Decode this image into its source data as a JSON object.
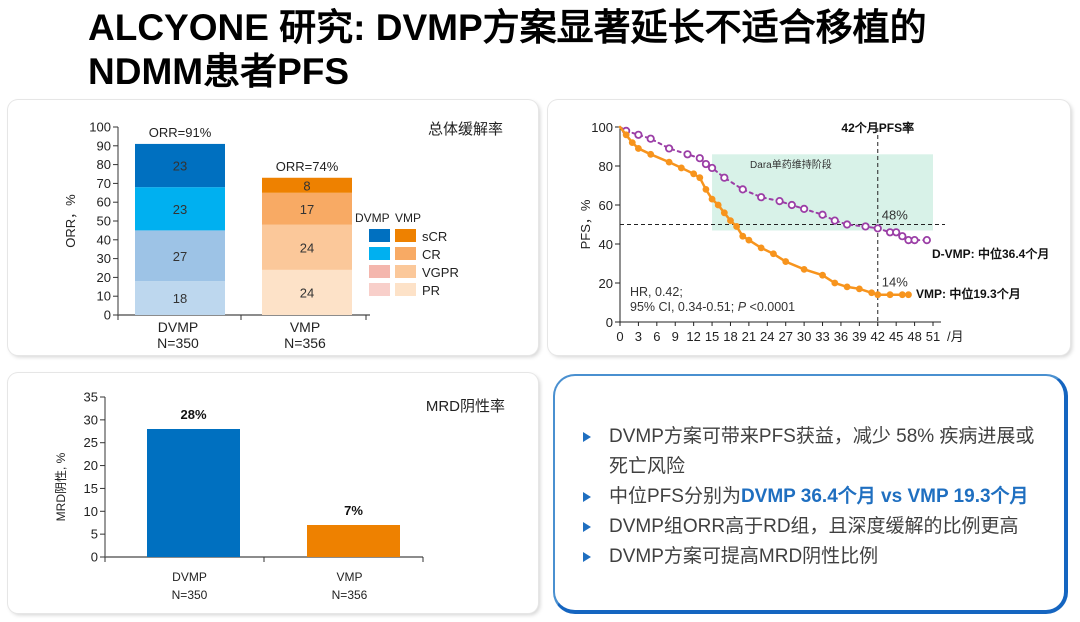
{
  "title": {
    "line1": "ALCYONE 研究: DVMP方案显著延长不适合移植的",
    "line2": "NDMM患者PFS"
  },
  "colors": {
    "dvmp_scr": "#0070c0",
    "dvmp_cr": "#00b0f0",
    "dvmp_vgpr": "#9dc3e6",
    "dvmp_pr": "#bdd7ee",
    "legend_dvmp_vgpr": "#f4b6ad",
    "legend_dvmp_pr": "#f8cfca",
    "vmp_scr": "#ee8100",
    "vmp_cr": "#f8aa64",
    "vmp_vgpr": "#fbc89a",
    "vmp_pr": "#fde2c8",
    "dvmp_line": "#9b3ea6",
    "vmp_line": "#f7941d",
    "shade": "#d8f2e8",
    "mrd_dvmp": "#0070c0",
    "mrd_vmp": "#ee8100",
    "accent": "#1f6fc0"
  },
  "chart_data": [
    {
      "id": "orr",
      "type": "bar",
      "stacked": true,
      "title": "总体缓解率",
      "ylabel": "ORR，%",
      "ylim": [
        0,
        100
      ],
      "yticks": [
        0,
        10,
        20,
        30,
        40,
        50,
        60,
        70,
        80,
        90,
        100
      ],
      "categories": [
        "DVMP",
        "VMP"
      ],
      "category_sublabels": [
        "N=350",
        "N=356"
      ],
      "totals_labels": [
        "ORR=91%",
        "ORR=74%"
      ],
      "series": [
        {
          "name": "PR",
          "values": [
            18,
            24
          ]
        },
        {
          "name": "VGPR",
          "values": [
            27,
            24
          ]
        },
        {
          "name": "CR",
          "values": [
            23,
            17
          ]
        },
        {
          "name": "sCR",
          "values": [
            23,
            8
          ]
        }
      ],
      "legend": {
        "header": [
          "DVMP",
          "VMP"
        ],
        "entries": [
          "sCR",
          "CR",
          "VGPR",
          "PR"
        ],
        "placement": "right"
      }
    },
    {
      "id": "pfs",
      "type": "line",
      "title": "42个月PFS率",
      "ylabel": "PFS，%",
      "xlabel_unit": "/月",
      "xlim": [
        0,
        51
      ],
      "ylim": [
        0,
        100
      ],
      "xticks": [
        0,
        3,
        6,
        9,
        12,
        15,
        18,
        21,
        24,
        27,
        30,
        33,
        36,
        39,
        42,
        45,
        48,
        51
      ],
      "yticks": [
        0,
        20,
        40,
        60,
        80,
        100
      ],
      "reference_lines": {
        "x": 42,
        "y": 50
      },
      "shaded_region": {
        "label": "Dara单药维持阶段",
        "x": [
          15,
          51
        ],
        "y_top": 86
      },
      "annotations": {
        "dvmp_rate": "48%",
        "vmp_rate": "14%",
        "stats_line1": "HR, 0.42;",
        "stats_line2_prefix": "95% CI, 0.34-0.51; ",
        "stats_p": "P",
        "stats_line2_suffix": " <0.0001"
      },
      "series": [
        {
          "name": "D-VMP: 中位36.4个月",
          "x": [
            0,
            1,
            3,
            5,
            8,
            11,
            13,
            14,
            15,
            17,
            20,
            23,
            26,
            28,
            30,
            33,
            35,
            37,
            40,
            42,
            44,
            45,
            46,
            47,
            48,
            50
          ],
          "y": [
            100,
            98,
            96,
            94,
            89,
            86,
            84,
            81,
            79,
            74,
            68,
            64,
            62,
            60,
            58,
            55,
            52,
            50,
            49,
            48,
            46,
            46,
            44,
            42,
            42,
            42
          ]
        },
        {
          "name": "VMP:  中位19.3个月",
          "x": [
            0,
            1,
            2,
            3,
            5,
            8,
            10,
            12,
            13,
            14,
            15,
            16,
            17,
            18,
            19,
            20,
            21,
            23,
            25,
            27,
            30,
            33,
            35,
            37,
            39,
            41,
            42,
            44,
            46,
            47
          ],
          "y": [
            100,
            96,
            92,
            89,
            86,
            82,
            79,
            76,
            74,
            68,
            63,
            60,
            56,
            52,
            49,
            44,
            42,
            38,
            35,
            31,
            27,
            24,
            20,
            18,
            17,
            15,
            14,
            14,
            14,
            14
          ]
        }
      ]
    },
    {
      "id": "mrd",
      "type": "bar",
      "title": "MRD阴性率",
      "ylabel": "MRD阴性, %",
      "ylim": [
        0,
        35
      ],
      "yticks": [
        0,
        5,
        10,
        15,
        20,
        25,
        30,
        35
      ],
      "categories": [
        "DVMP",
        "VMP"
      ],
      "category_sublabels": [
        "N=350",
        "N=356"
      ],
      "values": [
        28,
        7
      ],
      "value_labels": [
        "28%",
        "7%"
      ]
    }
  ],
  "summary": {
    "bullets": [
      {
        "text": "DVMP方案可带来PFS获益，减少 58% 疾病进展或死亡风险",
        "highlight": ""
      },
      {
        "text": "中位PFS分别为",
        "highlight": "DVMP 36.4个月 vs VMP 19.3个月"
      },
      {
        "text": "DVMP组ORR高于RD组，且深度缓解的比例更高",
        "highlight": ""
      },
      {
        "text": "DVMP方案可提高MRD阴性比例",
        "highlight": ""
      }
    ]
  }
}
